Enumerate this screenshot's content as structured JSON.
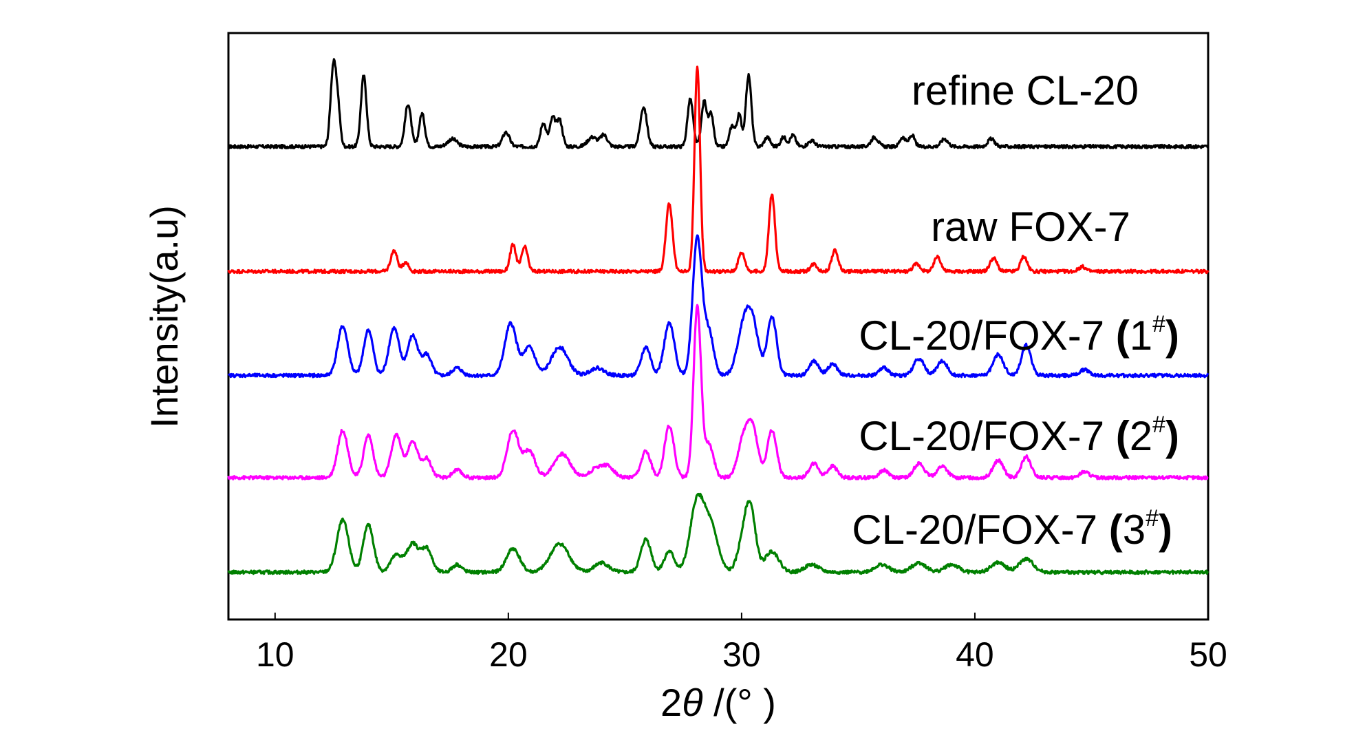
{
  "chart_data": {
    "type": "line",
    "xlabel": "2θ  /(°  )",
    "ylabel": "Intensity(a.u)",
    "xlim": [
      8,
      50
    ],
    "xticks": [
      10,
      20,
      30,
      40,
      50
    ],
    "yticks_shown": false,
    "grid": false,
    "legend": "labels placed above each trace",
    "series": [
      {
        "name": "refine CL-20",
        "color": "#000000",
        "baseline": 5.0,
        "peaks": [
          [
            12.5,
            0.85,
            0.12
          ],
          [
            12.7,
            0.35,
            0.1
          ],
          [
            13.8,
            0.75,
            0.12
          ],
          [
            15.7,
            0.45,
            0.13
          ],
          [
            16.3,
            0.35,
            0.12
          ],
          [
            17.6,
            0.08,
            0.2
          ],
          [
            19.9,
            0.15,
            0.15
          ],
          [
            21.5,
            0.25,
            0.12
          ],
          [
            21.9,
            0.3,
            0.12
          ],
          [
            22.2,
            0.28,
            0.12
          ],
          [
            23.6,
            0.1,
            0.2
          ],
          [
            24.1,
            0.12,
            0.15
          ],
          [
            25.8,
            0.42,
            0.14
          ],
          [
            27.8,
            0.5,
            0.12
          ],
          [
            28.4,
            0.48,
            0.12
          ],
          [
            28.7,
            0.33,
            0.1
          ],
          [
            29.6,
            0.22,
            0.12
          ],
          [
            29.9,
            0.33,
            0.1
          ],
          [
            30.3,
            0.75,
            0.12
          ],
          [
            31.1,
            0.1,
            0.12
          ],
          [
            31.8,
            0.1,
            0.12
          ],
          [
            32.2,
            0.12,
            0.12
          ],
          [
            33.0,
            0.06,
            0.15
          ],
          [
            35.7,
            0.1,
            0.15
          ],
          [
            36.9,
            0.1,
            0.12
          ],
          [
            37.3,
            0.12,
            0.12
          ],
          [
            38.7,
            0.08,
            0.15
          ],
          [
            40.7,
            0.08,
            0.15
          ]
        ]
      },
      {
        "name": "raw FOX-7",
        "color": "#ff0000",
        "baseline": 3.68,
        "peaks": [
          [
            15.1,
            0.22,
            0.14
          ],
          [
            15.6,
            0.1,
            0.12
          ],
          [
            20.2,
            0.28,
            0.13
          ],
          [
            20.7,
            0.26,
            0.13
          ],
          [
            26.9,
            0.72,
            0.14
          ],
          [
            28.1,
            2.15,
            0.12
          ],
          [
            30.0,
            0.2,
            0.14
          ],
          [
            31.3,
            0.82,
            0.13
          ],
          [
            33.1,
            0.08,
            0.14
          ],
          [
            34.0,
            0.22,
            0.14
          ],
          [
            37.5,
            0.08,
            0.15
          ],
          [
            38.4,
            0.16,
            0.14
          ],
          [
            40.8,
            0.14,
            0.15
          ],
          [
            42.1,
            0.16,
            0.14
          ],
          [
            44.6,
            0.05,
            0.15
          ]
        ]
      },
      {
        "name": "CL-20/FOX-7 (1#)",
        "color": "#0000ff",
        "baseline": 2.58,
        "peaks": [
          [
            12.9,
            0.52,
            0.22
          ],
          [
            14.0,
            0.48,
            0.2
          ],
          [
            15.1,
            0.5,
            0.22
          ],
          [
            15.9,
            0.42,
            0.22
          ],
          [
            16.5,
            0.22,
            0.2
          ],
          [
            17.8,
            0.08,
            0.2
          ],
          [
            20.1,
            0.55,
            0.25
          ],
          [
            20.9,
            0.3,
            0.25
          ],
          [
            22.2,
            0.3,
            0.35
          ],
          [
            23.8,
            0.08,
            0.3
          ],
          [
            25.9,
            0.3,
            0.2
          ],
          [
            26.9,
            0.55,
            0.22
          ],
          [
            28.1,
            1.45,
            0.2
          ],
          [
            28.6,
            0.45,
            0.2
          ],
          [
            30.1,
            0.52,
            0.28
          ],
          [
            30.5,
            0.45,
            0.25
          ],
          [
            31.3,
            0.62,
            0.2
          ],
          [
            33.1,
            0.15,
            0.2
          ],
          [
            33.9,
            0.12,
            0.2
          ],
          [
            36.1,
            0.08,
            0.2
          ],
          [
            37.6,
            0.18,
            0.22
          ],
          [
            38.6,
            0.15,
            0.22
          ],
          [
            41.0,
            0.22,
            0.22
          ],
          [
            42.2,
            0.32,
            0.2
          ],
          [
            44.7,
            0.06,
            0.2
          ]
        ]
      },
      {
        "name": "CL-20/FOX-7 (2#)",
        "color": "#ff00ff",
        "baseline": 1.5,
        "peaks": [
          [
            12.9,
            0.5,
            0.22
          ],
          [
            14.0,
            0.45,
            0.2
          ],
          [
            15.2,
            0.45,
            0.22
          ],
          [
            15.9,
            0.38,
            0.22
          ],
          [
            16.5,
            0.2,
            0.2
          ],
          [
            17.8,
            0.08,
            0.2
          ],
          [
            20.2,
            0.5,
            0.25
          ],
          [
            20.9,
            0.28,
            0.25
          ],
          [
            22.3,
            0.25,
            0.35
          ],
          [
            23.8,
            0.1,
            0.3
          ],
          [
            24.3,
            0.1,
            0.25
          ],
          [
            25.9,
            0.28,
            0.2
          ],
          [
            26.9,
            0.55,
            0.2
          ],
          [
            28.1,
            1.8,
            0.16
          ],
          [
            28.6,
            0.35,
            0.2
          ],
          [
            30.1,
            0.42,
            0.25
          ],
          [
            30.5,
            0.45,
            0.22
          ],
          [
            31.3,
            0.5,
            0.2
          ],
          [
            33.1,
            0.15,
            0.2
          ],
          [
            33.9,
            0.12,
            0.2
          ],
          [
            36.1,
            0.08,
            0.2
          ],
          [
            37.6,
            0.15,
            0.22
          ],
          [
            38.6,
            0.12,
            0.22
          ],
          [
            41.0,
            0.18,
            0.22
          ],
          [
            42.2,
            0.22,
            0.2
          ],
          [
            44.7,
            0.06,
            0.2
          ]
        ]
      },
      {
        "name": "CL-20/FOX-7 (3#)",
        "color": "#008000",
        "baseline": 0.5,
        "peaks": [
          [
            12.9,
            0.55,
            0.25
          ],
          [
            14.0,
            0.5,
            0.22
          ],
          [
            15.2,
            0.18,
            0.25
          ],
          [
            15.9,
            0.3,
            0.25
          ],
          [
            16.5,
            0.25,
            0.22
          ],
          [
            17.8,
            0.08,
            0.2
          ],
          [
            20.2,
            0.25,
            0.28
          ],
          [
            22.2,
            0.3,
            0.4
          ],
          [
            24.0,
            0.1,
            0.3
          ],
          [
            25.9,
            0.35,
            0.22
          ],
          [
            26.9,
            0.22,
            0.22
          ],
          [
            28.1,
            0.75,
            0.3
          ],
          [
            28.7,
            0.45,
            0.3
          ],
          [
            30.1,
            0.35,
            0.25
          ],
          [
            30.4,
            0.55,
            0.22
          ],
          [
            31.3,
            0.22,
            0.3
          ],
          [
            33.0,
            0.08,
            0.3
          ],
          [
            36.0,
            0.08,
            0.3
          ],
          [
            37.6,
            0.1,
            0.3
          ],
          [
            39.0,
            0.08,
            0.3
          ],
          [
            41.0,
            0.1,
            0.3
          ],
          [
            42.2,
            0.14,
            0.3
          ]
        ]
      }
    ],
    "ylim": [
      0,
      6.2
    ]
  },
  "labels": {
    "s0": "refine CL-20",
    "s1": "raw FOX-7",
    "s2_prefix": "CL-20/FOX-7 ",
    "s2_open": "(",
    "s2_num": "1",
    "s2_sup": "#",
    "s2_close": ")",
    "s3_prefix": "CL-20/FOX-7 ",
    "s3_open": "(",
    "s3_num": "2",
    "s3_sup": "#",
    "s3_close": ")",
    "s4_prefix": "CL-20/FOX-7 ",
    "s4_open": "(",
    "s4_num": "3",
    "s4_sup": "#",
    "s4_close": ")",
    "x_axis_prefix": "2",
    "x_axis_theta": "θ",
    "x_axis_suffix": "  /(°  )"
  }
}
